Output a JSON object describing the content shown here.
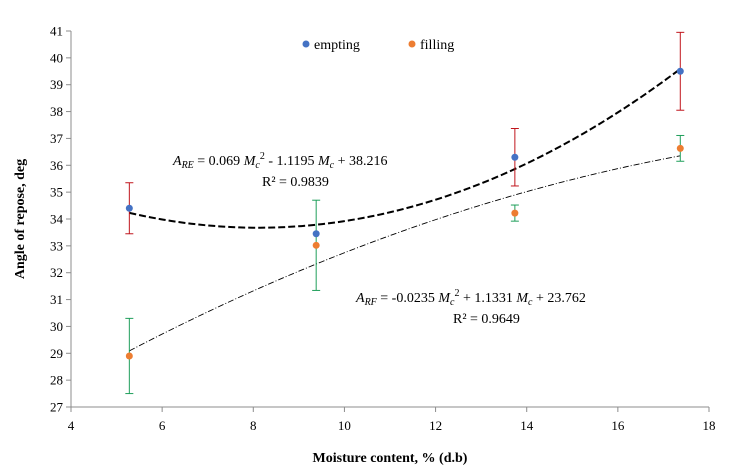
{
  "chart_data": {
    "type": "scatter",
    "xlabel": "Moisture content, % (d.b)",
    "ylabel": "Angle of repose, deg",
    "xlim": [
      4,
      18
    ],
    "ylim": [
      27,
      41
    ],
    "x_ticks": [
      4,
      6,
      8,
      10,
      12,
      14,
      16,
      18
    ],
    "y_ticks": [
      27,
      28,
      29,
      30,
      31,
      32,
      33,
      34,
      35,
      36,
      37,
      38,
      39,
      40,
      41
    ],
    "grid": false,
    "legend_position": "top",
    "series": [
      {
        "name": "empting",
        "color": "#4472C4",
        "x": [
          5.28,
          9.38,
          13.74,
          17.37
        ],
        "y": [
          34.4,
          33.45,
          36.3,
          39.5
        ],
        "error": [
          0.95,
          null,
          1.07,
          1.45
        ],
        "error_color": "#C0151C",
        "trend": {
          "type": "poly2",
          "coeffs": [
            0.069,
            -1.1195,
            38.216
          ],
          "style": "dashed",
          "color": "#000000"
        }
      },
      {
        "name": "filling",
        "color": "#ED7D31",
        "x": [
          5.28,
          9.38,
          13.74,
          17.37
        ],
        "y": [
          28.9,
          33.02,
          34.22,
          36.63
        ],
        "error": [
          1.4,
          1.68,
          0.3,
          0.48
        ],
        "error_color": "#1E9E5A",
        "trend": {
          "type": "poly2",
          "coeffs": [
            -0.0235,
            1.1331,
            23.762
          ],
          "style": "dashdot",
          "color": "#000000"
        }
      }
    ],
    "annotations": {
      "empting_equation": {
        "prefix_letter": "A",
        "subscript": "RE",
        "part1": " = 0.069 ",
        "m1": "M",
        "msub1": "c",
        "sup": "2",
        "part2": " - 1.1195 ",
        "m2": "M",
        "msub2": "c",
        "part3": " + 38.216",
        "r2": "R² = 0.9839"
      },
      "filling_equation": {
        "prefix_letter": "A",
        "subscript": "RF",
        "part1": " = -0.0235 ",
        "m1": "M",
        "msub1": "c",
        "sup": "2",
        "part2": " + 1.1331 ",
        "m2": "M",
        "msub2": "c",
        "part3": " + 23.762",
        "r2": "R² = 0.9649"
      }
    }
  }
}
